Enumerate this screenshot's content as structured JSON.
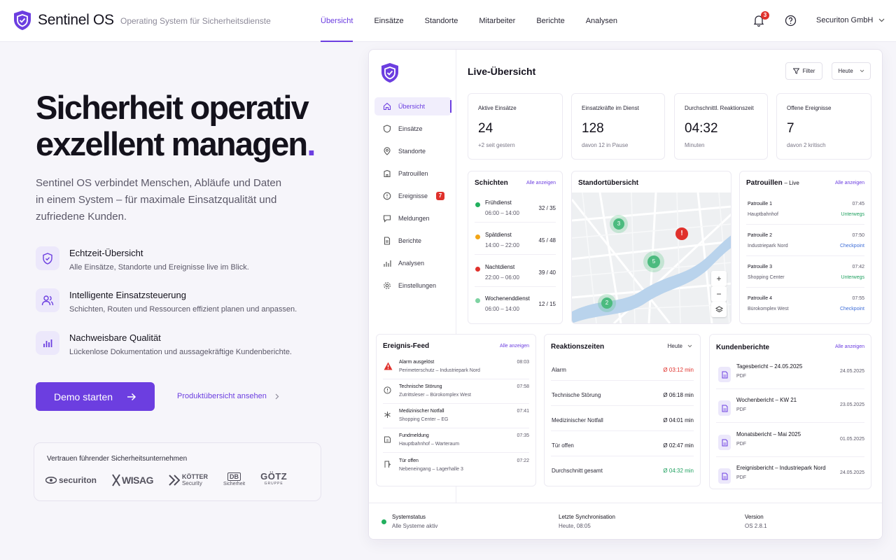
{
  "header": {
    "app_name": "Sentinel OS",
    "tagline": "Operating System für Sicherheitsdienste",
    "nav": [
      "Übersicht",
      "Einsätze",
      "Standorte",
      "Mitarbeiter",
      "Berichte",
      "Analysen"
    ],
    "notifications": "3",
    "company": "Securiton GmbH"
  },
  "hero": {
    "title_line1": "Sicherheit operativ",
    "title_line2": "exzellent managen",
    "title_dot": ".",
    "text": "Sentinel OS verbindet Menschen, Abläufe und Daten in einem System – für maximale Einsatzqualität und zufriedene Kunden.",
    "features": [
      {
        "title": "Echtzeit-Übersicht",
        "desc": "Alle Einsätze, Standorte und Ereignisse live im Blick.",
        "icon": "shield-icon"
      },
      {
        "title": "Intelligente Einsatzsteuerung",
        "desc": "Schichten, Routen und Ressourcen effizient planen und anpassen.",
        "icon": "users-icon"
      },
      {
        "title": "Nachweisbare Qualität",
        "desc": "Lückenlose Dokumentation und aussagekräftige Kundenberichte.",
        "icon": "chart-icon"
      }
    ],
    "cta": "Demo starten",
    "link": "Produktübersicht ansehen",
    "trust_label": "Vertrauen führender Sicherheitsunternehmen",
    "logos": [
      "securiton",
      "WISAG",
      "KÖTTER",
      "Security",
      "DB",
      "Sicherheit",
      "GÖTZ",
      "GRUPPE"
    ]
  },
  "app": {
    "sidebar": [
      {
        "label": "Übersicht"
      },
      {
        "label": "Einsätze"
      },
      {
        "label": "Standorte"
      },
      {
        "label": "Patrouillen"
      },
      {
        "label": "Ereignisse",
        "count": "7"
      },
      {
        "label": "Meldungen"
      },
      {
        "label": "Berichte"
      },
      {
        "label": "Analysen"
      },
      {
        "label": "Einstellungen"
      }
    ],
    "title": "Live-Übersicht",
    "filter": "Filter",
    "period": "Heute",
    "kpis": [
      {
        "label": "Aktive Einsätze",
        "value": "24",
        "sub": "+2 seit gestern"
      },
      {
        "label": "Einsatzkräfte im Dienst",
        "value": "128",
        "sub": "davon 12 in Pause"
      },
      {
        "label": "Durchschnittl. Reaktionszeit",
        "value": "04:32",
        "sub": "Minuten"
      },
      {
        "label": "Offene Ereignisse",
        "value": "7",
        "sub": "davon 2 kritisch"
      }
    ],
    "shifts": {
      "title": "Schichten",
      "all": "Alle anzeigen",
      "items": [
        {
          "name": "Frühdienst",
          "time": "06:00 – 14:00",
          "count": "32 / 35",
          "color": "#22b05e"
        },
        {
          "name": "Spätdienst",
          "time": "14:00 – 22:00",
          "count": "45 / 48",
          "color": "#f2a516"
        },
        {
          "name": "Nachtdienst",
          "time": "22:00 – 06:00",
          "count": "39 / 40",
          "color": "#e0312c"
        },
        {
          "name": "Wochenenddienst",
          "time": "06:00 – 14:00",
          "count": "12 / 15",
          "color": "#7ed3a2"
        }
      ]
    },
    "map": {
      "title": "Standortübersicht",
      "clusters": [
        "3",
        "5",
        "2"
      ],
      "alert": "!"
    },
    "patrols": {
      "title": "Patrouillen",
      "sub": "– Live",
      "all": "Alle anzeigen",
      "items": [
        {
          "name": "Patrouille 1",
          "place": "Hauptbahnhof",
          "time": "07:45",
          "status": "Unterwegs",
          "color": "#20a160"
        },
        {
          "name": "Patrouille 2",
          "place": "Industriepark Nord",
          "time": "07:50",
          "status": "Checkpoint",
          "color": "#3f6ed8"
        },
        {
          "name": "Patrouille 3",
          "place": "Shopping Center",
          "time": "07:42",
          "status": "Unterwegs",
          "color": "#20a160"
        },
        {
          "name": "Patrouille 4",
          "place": "Bürokomplex West",
          "time": "07:55",
          "status": "Checkpoint",
          "color": "#3f6ed8"
        }
      ]
    },
    "feed": {
      "title": "Ereignis-Feed",
      "all": "Alle anzeigen",
      "items": [
        {
          "name": "Alarm ausgelöst",
          "place": "Perimeterschutz – Industriepark Nord",
          "time": "08:03",
          "icon": "alert-icon",
          "alert": true
        },
        {
          "name": "Technische Störung",
          "place": "Zutrittsleser – Bürokomplex West",
          "time": "07:58",
          "icon": "warning-circle-icon"
        },
        {
          "name": "Medizinischer Notfall",
          "place": "Shopping Center – EG",
          "time": "07:41",
          "icon": "medical-icon"
        },
        {
          "name": "Fundmeldung",
          "place": "Hauptbahnhof – Warteraum",
          "time": "07:35",
          "icon": "box-icon"
        },
        {
          "name": "Tür offen",
          "place": "Nebeneingang – Lagerhalle 3",
          "time": "07:22",
          "icon": "door-icon"
        }
      ]
    },
    "reaction": {
      "title": "Reaktionszeiten",
      "period": "Heute",
      "items": [
        {
          "name": "Alarm",
          "value": "Ø 03:12 min",
          "color": "#e0312c"
        },
        {
          "name": "Technische Störung",
          "value": "Ø 06:18 min",
          "color": "#2a2836"
        },
        {
          "name": "Medizinischer Notfall",
          "value": "Ø 04:01 min",
          "color": "#2a2836"
        },
        {
          "name": "Tür offen",
          "value": "Ø 02:47 min",
          "color": "#2a2836"
        },
        {
          "name": "Durchschnitt gesamt",
          "value": "Ø 04:32 min",
          "color": "#20a160"
        }
      ]
    },
    "reports": {
      "title": "Kundenberichte",
      "all": "Alle anzeigen",
      "items": [
        {
          "name": "Tagesbericht – 24.05.2025",
          "type": "PDF",
          "date": "24.05.2025"
        },
        {
          "name": "Wochenbericht – KW 21",
          "type": "PDF",
          "date": "23.05.2025"
        },
        {
          "name": "Monatsbericht – Mai 2025",
          "type": "PDF",
          "date": "01.05.2025"
        },
        {
          "name": "Ereignisbericht – Industriepark Nord",
          "type": "PDF",
          "date": "24.05.2025"
        }
      ]
    },
    "status": {
      "system_label": "Systemstatus",
      "system_value": "Alle Systeme aktiv",
      "sync_label": "Letzte Synchronisation",
      "sync_value": "Heute, 08:05",
      "version_label": "Version",
      "version_value": "OS 2.8.1"
    }
  },
  "colors": {
    "accent": "#6c3ee0",
    "danger": "#e0312c",
    "success": "#20a160"
  }
}
